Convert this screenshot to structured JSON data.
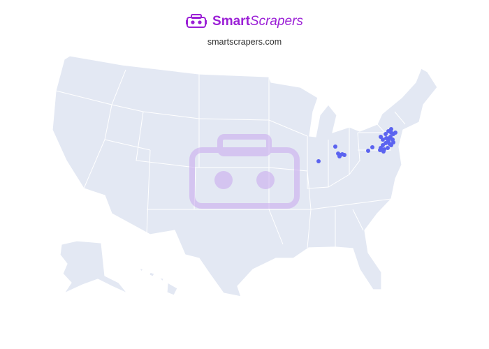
{
  "header": {
    "brand_bold": "Smart",
    "brand_italic": "Scrapers",
    "site": "smartscrapers.com",
    "logo_icon": "vr-headset-icon"
  },
  "colors": {
    "brand": "#9b1fd6",
    "land": "#e3e8f3",
    "border": "#ffffff",
    "marker": "#5b63f0",
    "watermark": "#c9a8ee"
  },
  "map": {
    "region": "United States",
    "markers": [
      {
        "lat": 39.2,
        "lon": -86.16
      },
      {
        "lat": 40.88,
        "lon": -83.74
      },
      {
        "lat": 40.08,
        "lon": -83.33
      },
      {
        "lat": 39.92,
        "lon": -83.03
      },
      {
        "lat": 40.0,
        "lon": -82.73
      },
      {
        "lat": 39.92,
        "lon": -82.42
      },
      {
        "lat": 39.76,
        "lon": -83.13
      },
      {
        "lat": 40.4,
        "lon": -78.99
      },
      {
        "lat": 40.8,
        "lon": -78.38
      },
      {
        "lat": 42.0,
        "lon": -77.17
      },
      {
        "lat": 41.68,
        "lon": -76.87
      },
      {
        "lat": 42.32,
        "lon": -76.46
      },
      {
        "lat": 42.64,
        "lon": -76.06
      },
      {
        "lat": 42.48,
        "lon": -75.66
      },
      {
        "lat": 42.32,
        "lon": -75.35
      },
      {
        "lat": 42.48,
        "lon": -75.05
      },
      {
        "lat": 42.0,
        "lon": -75.76
      },
      {
        "lat": 41.68,
        "lon": -75.45
      },
      {
        "lat": 41.52,
        "lon": -76.06
      },
      {
        "lat": 41.28,
        "lon": -76.46
      },
      {
        "lat": 41.04,
        "lon": -76.87
      },
      {
        "lat": 40.72,
        "lon": -77.17
      },
      {
        "lat": 40.56,
        "lon": -76.67
      },
      {
        "lat": 40.72,
        "lon": -76.16
      },
      {
        "lat": 41.04,
        "lon": -75.66
      },
      {
        "lat": 41.36,
        "lon": -75.35
      },
      {
        "lat": 41.84,
        "lon": -75.96
      },
      {
        "lat": 41.84,
        "lon": -76.36
      },
      {
        "lat": 42.88,
        "lon": -75.66
      },
      {
        "lat": 40.48,
        "lon": -77.27
      },
      {
        "lat": 40.32,
        "lon": -76.77
      },
      {
        "lat": 41.2,
        "lon": -75.9
      },
      {
        "lat": 41.6,
        "lon": -76.1
      }
    ]
  }
}
